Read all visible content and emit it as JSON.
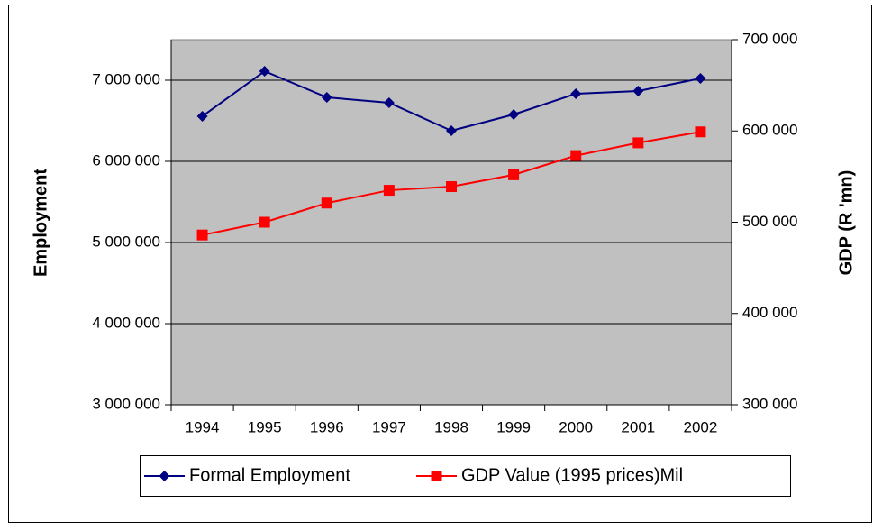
{
  "chart_data": {
    "type": "line",
    "categories": [
      "1994",
      "1995",
      "1996",
      "1997",
      "1998",
      "1999",
      "2000",
      "2001",
      "2002"
    ],
    "series": [
      {
        "name": "Formal Employment",
        "color": "#000080",
        "marker": "diamond",
        "values": [
          6556000,
          7111000,
          6789000,
          6722000,
          6378000,
          6578000,
          6833000,
          6867000,
          7022000
        ]
      },
      {
        "name": "GDP Value (1995 prices)Mil",
        "color": "#ff0000",
        "marker": "square",
        "axis": "y2",
        "values": [
          486000,
          500000,
          521000,
          535000,
          539000,
          552000,
          573000,
          587000,
          599000
        ]
      }
    ],
    "ylabel": "Employment",
    "y2label": "GDP (R 'mn)",
    "ylim": [
      3000000,
      7500000
    ],
    "yticks": [
      {
        "value": 3000000,
        "label": "3 000 000"
      },
      {
        "value": 4000000,
        "label": "4 000 000"
      },
      {
        "value": 5000000,
        "label": "5 000 000"
      },
      {
        "value": 6000000,
        "label": "6 000 000"
      },
      {
        "value": 7000000,
        "label": "7 000 000"
      }
    ],
    "y2lim": [
      300000,
      700000
    ],
    "y2ticks": [
      {
        "value": 300000,
        "label": "300 000"
      },
      {
        "value": 400000,
        "label": "400 000"
      },
      {
        "value": 500000,
        "label": "500 000"
      },
      {
        "value": 600000,
        "label": "600 000"
      },
      {
        "value": 700000,
        "label": "700 000"
      }
    ],
    "grid": true,
    "legend": "bottom"
  }
}
